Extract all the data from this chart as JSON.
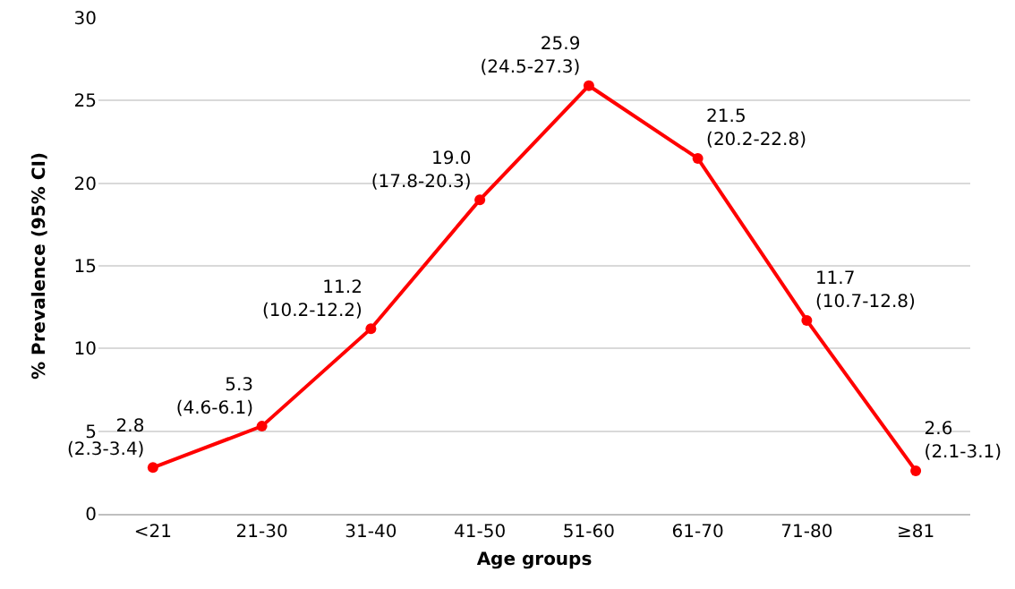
{
  "chart_data": {
    "type": "line",
    "xlabel": "Age groups",
    "ylabel": "% Prevalence (95% CI)",
    "categories": [
      "<21",
      "21-30",
      "31-40",
      "41-50",
      "51-60",
      "61-70",
      "71-80",
      "≥81"
    ],
    "series": [
      {
        "color": "#ff0000",
        "values": [
          2.8,
          5.3,
          11.2,
          19.0,
          25.9,
          21.5,
          11.7,
          2.6
        ],
        "value_labels": [
          "2.8\n(2.3-3.4)",
          "5.3\n(4.6-6.1)",
          "11.2\n(10.2-12.2)",
          "19.0\n(17.8-20.3)",
          "25.9\n(24.5-27.3)",
          "21.5\n(20.2-22.8)",
          "11.7\n(10.7-12.8)",
          "2.6\n(2.1-3.1)"
        ]
      }
    ],
    "ylim": [
      0,
      30
    ],
    "yticks": [
      0,
      5,
      10,
      15,
      20,
      25,
      30
    ],
    "grid": "y",
    "marker": "circle",
    "line_style": "solid"
  }
}
